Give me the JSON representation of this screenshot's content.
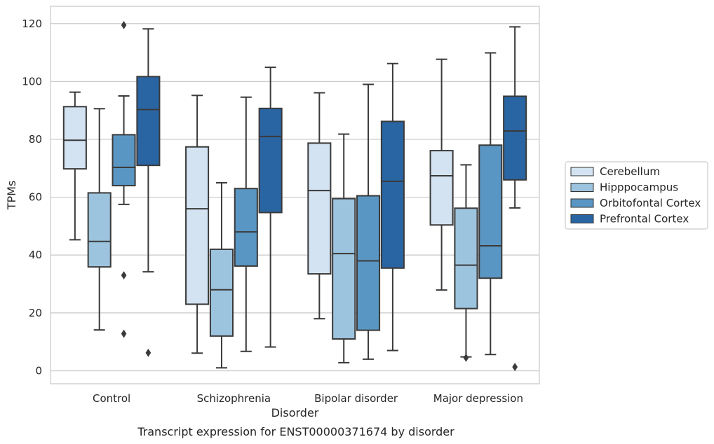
{
  "chart_data": {
    "type": "boxplot",
    "caption": "Transcript expression for ENST00000371674 by disorder",
    "xlabel": "Disorder",
    "ylabel": "TPMs",
    "ylim": [
      -4.5,
      126
    ],
    "yticks": [
      0,
      20,
      40,
      60,
      80,
      100,
      120
    ],
    "grid": "horizontal",
    "legend_position": "right",
    "categories": [
      "Control",
      "Schizophrenia",
      "Bipolar disorder",
      "Major depression"
    ],
    "series": [
      {
        "name": "Cerebellum",
        "color": "#d3e3f2",
        "boxes": [
          {
            "whislo": 45.3,
            "q1": 69.8,
            "med": 79.7,
            "q3": 91.3,
            "whishi": 96.3,
            "fliers": []
          },
          {
            "whislo": 6.1,
            "q1": 23.0,
            "med": 56.0,
            "q3": 77.4,
            "whishi": 95.2,
            "fliers": []
          },
          {
            "whislo": 18.0,
            "q1": 33.5,
            "med": 62.3,
            "q3": 78.7,
            "whishi": 96.1,
            "fliers": []
          },
          {
            "whislo": 27.9,
            "q1": 50.4,
            "med": 67.4,
            "q3": 76.1,
            "whishi": 107.7,
            "fliers": []
          }
        ]
      },
      {
        "name": "Hipppocampus",
        "color": "#9dc4de",
        "boxes": [
          {
            "whislo": 14.1,
            "q1": 35.9,
            "med": 44.7,
            "q3": 61.5,
            "whishi": 90.6,
            "fliers": []
          },
          {
            "whislo": 1.0,
            "q1": 12.0,
            "med": 28.0,
            "q3": 42.0,
            "whishi": 65.0,
            "fliers": []
          },
          {
            "whislo": 2.8,
            "q1": 11.0,
            "med": 40.5,
            "q3": 59.5,
            "whishi": 81.8,
            "fliers": []
          },
          {
            "whislo": 4.8,
            "q1": 21.5,
            "med": 36.5,
            "q3": 56.2,
            "whishi": 71.2,
            "fliers": [
              4.5
            ]
          }
        ]
      },
      {
        "name": "Orbitofontal Cortex",
        "color": "#5a96c3",
        "boxes": [
          {
            "whislo": 57.5,
            "q1": 64.0,
            "med": 70.3,
            "q3": 81.6,
            "whishi": 95.0,
            "fliers": [
              119.5,
              33.0,
              12.8
            ]
          },
          {
            "whislo": 6.7,
            "q1": 36.2,
            "med": 48.0,
            "q3": 63.0,
            "whishi": 94.6,
            "fliers": []
          },
          {
            "whislo": 4.0,
            "q1": 14.0,
            "med": 38.0,
            "q3": 60.5,
            "whishi": 99.0,
            "fliers": []
          },
          {
            "whislo": 5.6,
            "q1": 32.0,
            "med": 43.2,
            "q3": 78.0,
            "whishi": 109.9,
            "fliers": []
          }
        ]
      },
      {
        "name": "Prefrontal Cortex",
        "color": "#2a65a3",
        "boxes": [
          {
            "whislo": 34.2,
            "q1": 71.0,
            "med": 90.3,
            "q3": 101.7,
            "whishi": 118.2,
            "fliers": [
              6.2
            ]
          },
          {
            "whislo": 8.2,
            "q1": 54.7,
            "med": 81.0,
            "q3": 90.7,
            "whishi": 104.9,
            "fliers": []
          },
          {
            "whislo": 7.0,
            "q1": 35.5,
            "med": 65.5,
            "q3": 86.2,
            "whishi": 106.2,
            "fliers": []
          },
          {
            "whislo": 56.3,
            "q1": 66.0,
            "med": 82.9,
            "q3": 94.9,
            "whishi": 118.9,
            "fliers": [
              1.3
            ]
          }
        ]
      }
    ]
  }
}
